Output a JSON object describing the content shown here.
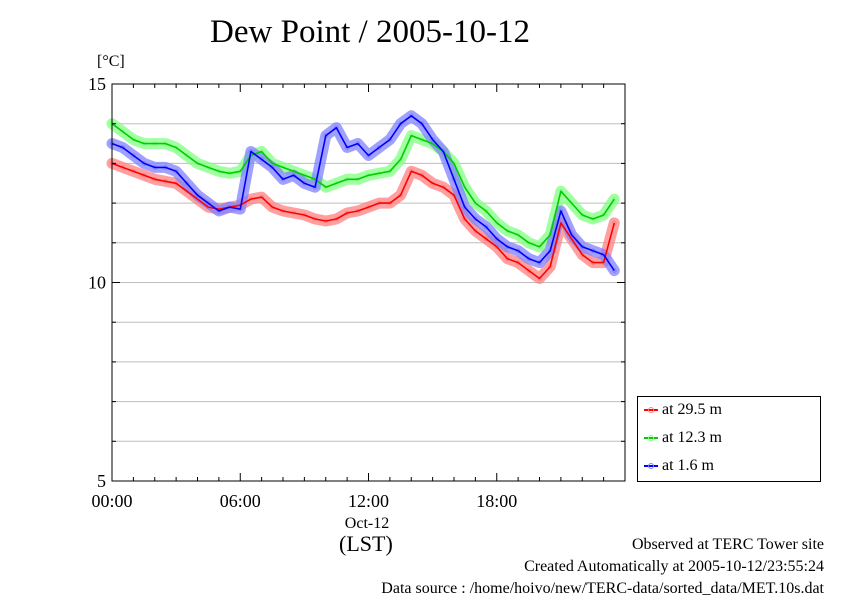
{
  "chart_data": {
    "type": "line",
    "title": "Dew Point / 2005-10-12",
    "ylabel": "[°C]",
    "ylim": [
      5,
      15
    ],
    "y_ticks": [
      5,
      10,
      15
    ],
    "xlim": [
      "00:00",
      "24:00"
    ],
    "x_ticks": [
      {
        "time": "00:00",
        "hour": 0
      },
      {
        "time": "06:00",
        "hour": 6
      },
      {
        "time": "12:00",
        "hour": 12
      },
      {
        "time": "18:00",
        "hour": 18
      }
    ],
    "x_date_label": "Oct-12",
    "x_axis_label": "(LST)",
    "grid": true,
    "legend_position": "bottom-right",
    "series": [
      {
        "name": "at 29.5 m",
        "color": "#ff0000",
        "band_color": "#ff8080",
        "x": [
          0,
          0.5,
          1,
          1.5,
          2,
          2.5,
          3,
          3.5,
          4,
          4.5,
          5,
          5.5,
          6,
          6.5,
          7,
          7.5,
          8,
          8.5,
          9,
          9.5,
          10,
          10.5,
          11,
          11.5,
          12,
          12.5,
          13,
          13.5,
          14,
          14.5,
          15,
          15.5,
          16,
          16.5,
          17,
          17.5,
          18,
          18.5,
          19,
          19.5,
          20,
          20.5,
          21,
          21.5,
          22,
          22.5,
          23,
          23.5
        ],
        "values": [
          13.0,
          12.9,
          12.8,
          12.7,
          12.6,
          12.55,
          12.5,
          12.3,
          12.1,
          11.9,
          11.85,
          11.9,
          11.95,
          12.1,
          12.15,
          11.9,
          11.8,
          11.75,
          11.7,
          11.6,
          11.55,
          11.6,
          11.75,
          11.8,
          11.9,
          12.0,
          12.0,
          12.2,
          12.8,
          12.7,
          12.5,
          12.4,
          12.2,
          11.6,
          11.3,
          11.1,
          10.9,
          10.6,
          10.5,
          10.3,
          10.1,
          10.4,
          11.5,
          11.1,
          10.7,
          10.5,
          10.5,
          11.5
        ]
      },
      {
        "name": "at 12.3 m",
        "color": "#00cc00",
        "band_color": "#80ff80",
        "x": [
          0,
          0.5,
          1,
          1.5,
          2,
          2.5,
          3,
          3.5,
          4,
          4.5,
          5,
          5.5,
          6,
          6.5,
          7,
          7.5,
          8,
          8.5,
          9,
          9.5,
          10,
          10.5,
          11,
          11.5,
          12,
          12.5,
          13,
          13.5,
          14,
          14.5,
          15,
          15.5,
          16,
          16.5,
          17,
          17.5,
          18,
          18.5,
          19,
          19.5,
          20,
          20.5,
          21,
          21.5,
          22,
          22.5,
          23,
          23.5
        ],
        "values": [
          14.0,
          13.8,
          13.6,
          13.5,
          13.5,
          13.5,
          13.4,
          13.2,
          13.0,
          12.9,
          12.8,
          12.75,
          12.8,
          13.2,
          13.3,
          13.0,
          12.9,
          12.8,
          12.7,
          12.6,
          12.4,
          12.5,
          12.6,
          12.6,
          12.7,
          12.75,
          12.8,
          13.1,
          13.7,
          13.6,
          13.5,
          13.3,
          13.0,
          12.4,
          12.0,
          11.8,
          11.5,
          11.3,
          11.2,
          11.0,
          10.9,
          11.2,
          12.3,
          12.0,
          11.7,
          11.6,
          11.7,
          12.1
        ]
      },
      {
        "name": "at 1.6 m",
        "color": "#0000ff",
        "band_color": "#8080ff",
        "x": [
          0,
          0.5,
          1,
          1.5,
          2,
          2.5,
          3,
          3.5,
          4,
          4.5,
          5,
          5.5,
          6,
          6.5,
          7,
          7.5,
          8,
          8.5,
          9,
          9.5,
          10,
          10.5,
          11,
          11.5,
          12,
          12.5,
          13,
          13.5,
          14,
          14.5,
          15,
          15.5,
          16,
          16.5,
          17,
          17.5,
          18,
          18.5,
          19,
          19.5,
          20,
          20.5,
          21,
          21.5,
          22,
          22.5,
          23,
          23.5
        ],
        "values": [
          13.5,
          13.4,
          13.2,
          13.0,
          12.9,
          12.9,
          12.8,
          12.5,
          12.2,
          12.0,
          11.8,
          11.9,
          11.85,
          13.3,
          13.1,
          12.9,
          12.6,
          12.7,
          12.5,
          12.4,
          13.7,
          13.9,
          13.4,
          13.5,
          13.2,
          13.4,
          13.6,
          14.0,
          14.2,
          14.0,
          13.6,
          13.3,
          12.6,
          11.9,
          11.6,
          11.4,
          11.1,
          10.9,
          10.8,
          10.6,
          10.5,
          10.8,
          11.8,
          11.2,
          10.9,
          10.8,
          10.7,
          10.3
        ]
      }
    ]
  },
  "footer": {
    "observed": "Observed at TERC Tower site",
    "created": "Created Automatically at 2005-10-12/23:55:24",
    "source": "Data source : /home/hoivo/new/TERC-data/sorted_data/MET.10s.dat"
  }
}
